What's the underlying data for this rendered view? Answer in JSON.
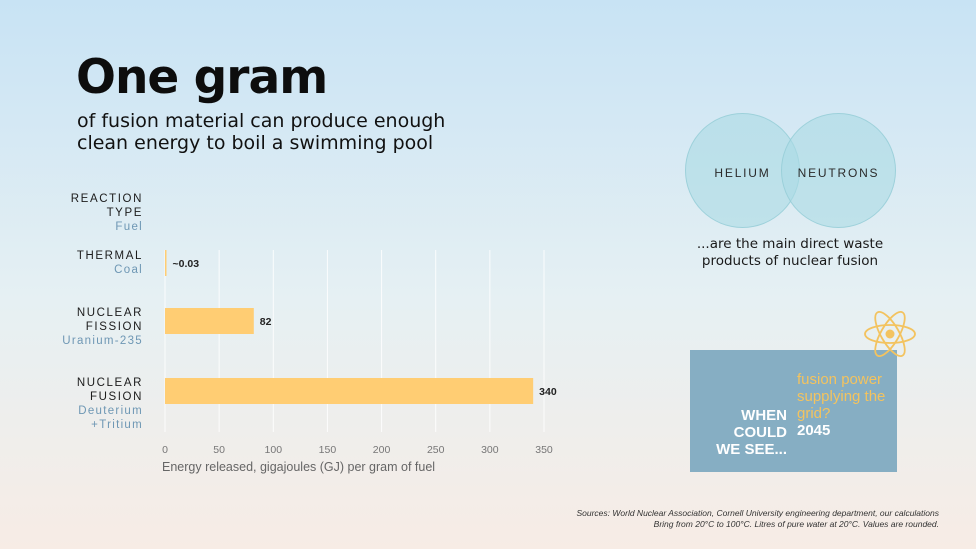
{
  "header": {
    "title": "One gram",
    "subtitle": "of fusion material can produce enough clean energy to boil a swimming pool"
  },
  "row_header": {
    "line1": "REACTION",
    "line2": "TYPE",
    "line3": "Fuel"
  },
  "rows": [
    {
      "line1": "THERMAL",
      "line2": "",
      "fuel1": "Coal",
      "fuel2": ""
    },
    {
      "line1": "NUCLEAR",
      "line2": "FISSION",
      "fuel1": "Uranium-235",
      "fuel2": ""
    },
    {
      "line1": "NUCLEAR",
      "line2": "FUSION",
      "fuel1": "Deuterium",
      "fuel2": "+Tritium"
    }
  ],
  "chart_data": {
    "type": "bar",
    "orientation": "horizontal",
    "categories": [
      "THERMAL (Coal)",
      "NUCLEAR FISSION (Uranium-235)",
      "NUCLEAR FUSION (Deuterium+Tritium)"
    ],
    "values": [
      0.03,
      82,
      340
    ],
    "data_labels": [
      "~0.03",
      "82",
      "340"
    ],
    "xlabel": "Energy released, gigajoules (GJ) per gram of fuel",
    "xlim": [
      0,
      350
    ],
    "xticks": [
      0,
      50,
      100,
      150,
      200,
      250,
      300,
      350
    ],
    "grid": "vertical",
    "bar_color": "#ffcd73"
  },
  "venn": {
    "left_label": "HELIUM",
    "right_label": "NEUTRONS",
    "caption": "...are the main direct waste products of nuclear fusion"
  },
  "callout": {
    "left_text": "WHEN COULD WE SEE...",
    "right_text": "fusion power supplying the grid?",
    "year": "2045",
    "icon": "atom-icon"
  },
  "sources": {
    "line1": "Sources: World Nuclear Association, Cornell University engineering department, our calculations",
    "line2": "Bring from 20°C to 100°C. Litres of pure water at 20°C. Values are rounded."
  },
  "colors": {
    "accent_bar": "#ffcd73",
    "callout_bg": "#86aec3",
    "callout_highlight": "#f3c35f",
    "fuel_text": "#6e97b4"
  }
}
